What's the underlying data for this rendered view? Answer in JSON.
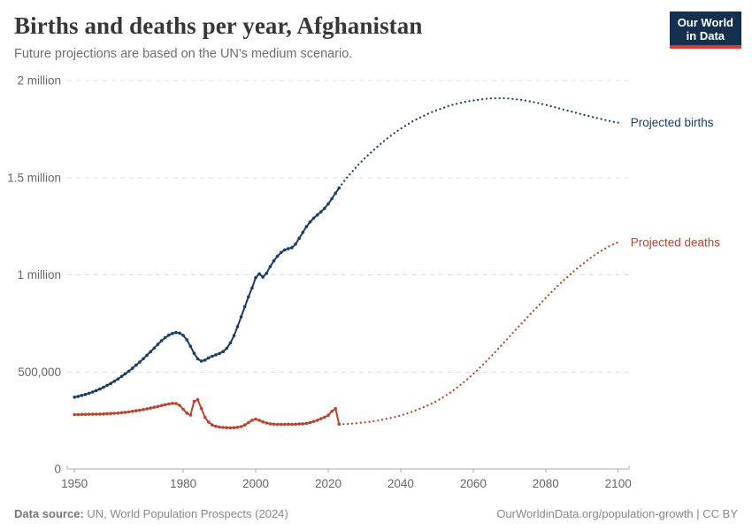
{
  "header": {
    "title": "Births and deaths per year, Afghanistan",
    "subtitle": "Future projections are based on the UN's medium scenario.",
    "logo": {
      "line1": "Our World",
      "line2": "in Data"
    }
  },
  "footer": {
    "source_label": "Data source:",
    "source_text": " UN, World Population Prospects (2024)",
    "right_text": "OurWorldinData.org/population-growth | CC BY"
  },
  "chart_data": {
    "type": "line",
    "title": "Births and deaths per year, Afghanistan",
    "subtitle": "Future projections are based on the UN's medium scenario.",
    "values_unit": "people per year, in thousands",
    "x_domain": [
      1948,
      2103
    ],
    "y_domain_thousands": [
      0,
      2050
    ],
    "grid": true,
    "legend_position": "line-end-labels",
    "x_ticks": [
      1950,
      1980,
      2000,
      2020,
      2040,
      2060,
      2080,
      2100
    ],
    "y_ticks": [
      {
        "value": 0,
        "label": "0"
      },
      {
        "value": 500,
        "label": "500,000"
      },
      {
        "value": 1000,
        "label": "1 million"
      },
      {
        "value": 1500,
        "label": "1.5 million"
      },
      {
        "value": 2000,
        "label": "2 million"
      }
    ],
    "series": [
      {
        "name": "births",
        "end_label": "Projected births",
        "color": "#1d3d63",
        "observed": {
          "start_year": 1950,
          "values": [
            370,
            374,
            379,
            384,
            390,
            397,
            404,
            412,
            421,
            431,
            441,
            452,
            464,
            477,
            490,
            504,
            519,
            535,
            551,
            568,
            586,
            604,
            623,
            642,
            660,
            676,
            689,
            698,
            703,
            700,
            688,
            665,
            632,
            596,
            567,
            556,
            561,
            572,
            581,
            588,
            595,
            605,
            622,
            649,
            687,
            733,
            784,
            836,
            886,
            932,
            985,
            1005,
            988,
            1008,
            1042,
            1072,
            1095,
            1115,
            1128,
            1135,
            1140,
            1158,
            1188,
            1218,
            1248,
            1272,
            1292,
            1308,
            1324,
            1342,
            1365,
            1392,
            1420,
            1447
          ]
        },
        "projection": {
          "years": [
            2023,
            2025,
            2028,
            2030,
            2033,
            2035,
            2038,
            2040,
            2043,
            2045,
            2048,
            2050,
            2053,
            2055,
            2058,
            2060,
            2063,
            2065,
            2068,
            2070,
            2073,
            2075,
            2078,
            2080,
            2083,
            2085,
            2088,
            2090,
            2093,
            2095,
            2098,
            2100
          ],
          "values": [
            1447,
            1497,
            1560,
            1598,
            1650,
            1682,
            1726,
            1752,
            1787,
            1807,
            1833,
            1848,
            1868,
            1879,
            1891,
            1897,
            1905,
            1908,
            1909,
            1907,
            1901,
            1895,
            1884,
            1875,
            1860,
            1850,
            1836,
            1826,
            1812,
            1803,
            1790,
            1783
          ]
        }
      },
      {
        "name": "deaths",
        "end_label": "Projected deaths",
        "color": "#b5462f",
        "observed": {
          "start_year": 1950,
          "values": [
            280,
            280,
            281,
            281,
            282,
            282,
            283,
            283,
            284,
            285,
            286,
            287,
            288,
            290,
            292,
            294,
            297,
            300,
            303,
            306,
            310,
            314,
            318,
            322,
            327,
            331,
            335,
            338,
            337,
            328,
            308,
            288,
            278,
            348,
            357,
            312,
            266,
            242,
            227,
            220,
            216,
            214,
            213,
            212,
            213,
            215,
            218,
            227,
            239,
            251,
            257,
            251,
            243,
            237,
            233,
            231,
            230,
            230,
            230,
            231,
            230,
            231,
            232,
            233,
            235,
            239,
            245,
            251,
            259,
            267,
            277,
            297,
            311,
            231
          ]
        },
        "projection": {
          "years": [
            2023,
            2025,
            2028,
            2030,
            2033,
            2035,
            2038,
            2040,
            2043,
            2045,
            2048,
            2050,
            2053,
            2055,
            2058,
            2060,
            2063,
            2065,
            2068,
            2070,
            2073,
            2075,
            2078,
            2080,
            2083,
            2085,
            2088,
            2090,
            2093,
            2095,
            2098,
            2100
          ],
          "values": [
            231,
            232,
            236,
            240,
            247,
            254,
            266,
            276,
            294,
            308,
            332,
            351,
            385,
            411,
            456,
            489,
            543,
            581,
            641,
            682,
            742,
            782,
            841,
            880,
            937,
            972,
            1022,
            1052,
            1095,
            1120,
            1152,
            1167
          ]
        }
      }
    ]
  }
}
